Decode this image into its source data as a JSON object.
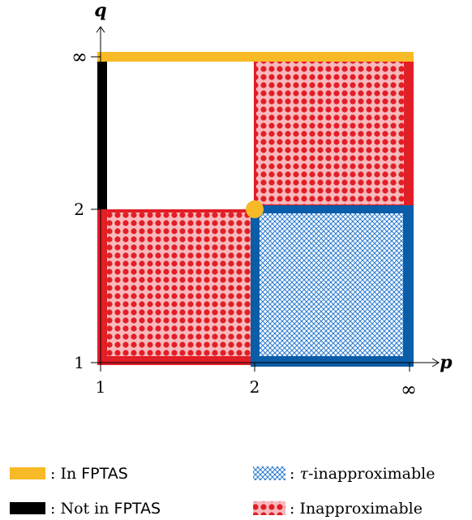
{
  "axes": {
    "x_label": "p",
    "y_label": "q",
    "x_ticks": [
      "1",
      "2",
      "∞"
    ],
    "y_ticks": [
      "1",
      "2",
      "∞"
    ]
  },
  "colors": {
    "in_fptas": "#F8BA26",
    "not_in_fptas": "#000000",
    "inapproximable": "#E21E26",
    "inapproximable_fill": "#F7B9BC",
    "tau_inapproximable": "#0A5DA8",
    "tau_fill": "#8EC5F0"
  },
  "regions": [
    {
      "kind": "inapproximable",
      "p": [
        "1",
        "2"
      ],
      "q": [
        "1",
        "2"
      ]
    },
    {
      "kind": "inapproximable",
      "p": [
        "2",
        "∞"
      ],
      "q": [
        "2",
        "∞"
      ]
    },
    {
      "kind": "tau_inapproximable",
      "p": [
        "2",
        "∞"
      ],
      "q": [
        "1",
        "2"
      ]
    },
    {
      "kind": "in_fptas",
      "p": [
        "1",
        "∞"
      ],
      "q": [
        "∞"
      ]
    },
    {
      "kind": "not_in_fptas",
      "p": [
        "1"
      ],
      "q": [
        "2",
        "∞"
      ]
    }
  ],
  "legend": [
    {
      "key": "in_fptas",
      "prefix": ": In ",
      "term": "FPTAS"
    },
    {
      "key": "not_in_fptas",
      "prefix": ": Not in ",
      "term": "FPTAS"
    },
    {
      "key": "tau_inapproximable",
      "tau": "τ",
      "suffix": "-inapproximable"
    },
    {
      "key": "inapproximable",
      "prefix": ": Inapproximable"
    }
  ]
}
